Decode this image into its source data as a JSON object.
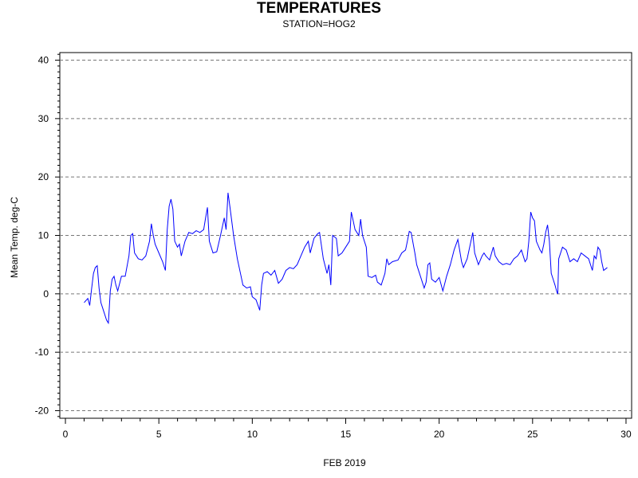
{
  "chart_data": {
    "type": "line",
    "title": "TEMPERATURES",
    "subtitle": "STATION=HOG2",
    "xlabel": "FEB 2019",
    "ylabel": "Mean Temp. deg-C",
    "xlim": [
      -0.3,
      30.3
    ],
    "ylim": [
      -21.3,
      41.3
    ],
    "x_ticks": [
      0,
      5,
      10,
      15,
      20,
      25,
      30
    ],
    "y_ticks": [
      -20,
      -10,
      0,
      10,
      20,
      30,
      40
    ],
    "grid": "horizontal dashed",
    "line_color": "#0000ff",
    "series": [
      {
        "values": [
          [
            1.0,
            -1.5
          ],
          [
            1.2,
            -0.8
          ],
          [
            1.3,
            -2.0
          ],
          [
            1.4,
            0.8
          ],
          [
            1.5,
            3.5
          ],
          [
            1.6,
            4.5
          ],
          [
            1.7,
            4.8
          ],
          [
            1.8,
            1.0
          ],
          [
            1.9,
            -1.5
          ],
          [
            2.0,
            -2.5
          ],
          [
            2.2,
            -4.5
          ],
          [
            2.3,
            -5.0
          ],
          [
            2.4,
            0.5
          ],
          [
            2.5,
            2.5
          ],
          [
            2.6,
            3.0
          ],
          [
            2.7,
            1.5
          ],
          [
            2.8,
            0.5
          ],
          [
            3.0,
            3.0
          ],
          [
            3.2,
            3.0
          ],
          [
            3.4,
            6.5
          ],
          [
            3.5,
            10.0
          ],
          [
            3.6,
            10.3
          ],
          [
            3.7,
            7.0
          ],
          [
            3.9,
            6.0
          ],
          [
            4.1,
            5.8
          ],
          [
            4.3,
            6.5
          ],
          [
            4.5,
            9.0
          ],
          [
            4.6,
            12.0
          ],
          [
            4.7,
            10.0
          ],
          [
            4.8,
            8.5
          ],
          [
            5.0,
            7.0
          ],
          [
            5.2,
            5.5
          ],
          [
            5.35,
            4.0
          ],
          [
            5.45,
            11.0
          ],
          [
            5.55,
            15.0
          ],
          [
            5.65,
            16.2
          ],
          [
            5.75,
            14.5
          ],
          [
            5.85,
            9.0
          ],
          [
            6.0,
            8.0
          ],
          [
            6.1,
            8.5
          ],
          [
            6.2,
            6.5
          ],
          [
            6.4,
            9.0
          ],
          [
            6.6,
            10.5
          ],
          [
            6.8,
            10.3
          ],
          [
            7.0,
            10.8
          ],
          [
            7.2,
            10.5
          ],
          [
            7.4,
            11.0
          ],
          [
            7.5,
            13.0
          ],
          [
            7.6,
            14.8
          ],
          [
            7.7,
            9.0
          ],
          [
            7.9,
            7.0
          ],
          [
            8.1,
            7.2
          ],
          [
            8.3,
            10.0
          ],
          [
            8.5,
            13.0
          ],
          [
            8.6,
            11.0
          ],
          [
            8.7,
            17.3
          ],
          [
            8.8,
            15.0
          ],
          [
            9.0,
            10.0
          ],
          [
            9.2,
            6.0
          ],
          [
            9.4,
            3.0
          ],
          [
            9.5,
            1.5
          ],
          [
            9.7,
            1.0
          ],
          [
            9.9,
            1.2
          ],
          [
            10.0,
            -0.5
          ],
          [
            10.2,
            -1.0
          ],
          [
            10.4,
            -2.8
          ],
          [
            10.5,
            1.5
          ],
          [
            10.6,
            3.5
          ],
          [
            10.8,
            3.8
          ],
          [
            11.0,
            3.2
          ],
          [
            11.2,
            4.0
          ],
          [
            11.4,
            1.8
          ],
          [
            11.6,
            2.5
          ],
          [
            11.8,
            4.0
          ],
          [
            12.0,
            4.5
          ],
          [
            12.2,
            4.3
          ],
          [
            12.4,
            5.0
          ],
          [
            12.6,
            6.5
          ],
          [
            12.8,
            8.0
          ],
          [
            13.0,
            9.0
          ],
          [
            13.1,
            7.0
          ],
          [
            13.3,
            9.5
          ],
          [
            13.5,
            10.3
          ],
          [
            13.6,
            10.5
          ],
          [
            13.8,
            6.0
          ],
          [
            14.0,
            3.5
          ],
          [
            14.1,
            5.0
          ],
          [
            14.2,
            1.5
          ],
          [
            14.3,
            10.0
          ],
          [
            14.5,
            9.5
          ],
          [
            14.6,
            6.5
          ],
          [
            14.8,
            7.0
          ],
          [
            15.0,
            8.0
          ],
          [
            15.2,
            9.0
          ],
          [
            15.3,
            14.0
          ],
          [
            15.4,
            12.5
          ],
          [
            15.5,
            11.0
          ],
          [
            15.7,
            10.0
          ],
          [
            15.8,
            12.8
          ],
          [
            15.9,
            10.0
          ],
          [
            16.1,
            8.0
          ],
          [
            16.2,
            3.0
          ],
          [
            16.4,
            2.8
          ],
          [
            16.6,
            3.2
          ],
          [
            16.7,
            2.0
          ],
          [
            16.9,
            1.5
          ],
          [
            17.1,
            3.5
          ],
          [
            17.2,
            6.0
          ],
          [
            17.3,
            5.0
          ],
          [
            17.5,
            5.5
          ],
          [
            17.8,
            5.8
          ],
          [
            18.0,
            7.0
          ],
          [
            18.2,
            7.5
          ],
          [
            18.3,
            9.0
          ],
          [
            18.4,
            10.7
          ],
          [
            18.5,
            10.5
          ],
          [
            18.7,
            7.0
          ],
          [
            18.8,
            5.0
          ],
          [
            19.0,
            3.0
          ],
          [
            19.2,
            1.0
          ],
          [
            19.3,
            2.0
          ],
          [
            19.4,
            5.0
          ],
          [
            19.5,
            5.3
          ],
          [
            19.6,
            2.5
          ],
          [
            19.8,
            2.0
          ],
          [
            20.0,
            2.8
          ],
          [
            20.2,
            0.5
          ],
          [
            20.4,
            3.0
          ],
          [
            20.6,
            5.0
          ],
          [
            20.8,
            7.5
          ],
          [
            21.0,
            9.3
          ],
          [
            21.2,
            5.5
          ],
          [
            21.3,
            4.5
          ],
          [
            21.5,
            6.0
          ],
          [
            21.7,
            9.0
          ],
          [
            21.8,
            10.5
          ],
          [
            21.9,
            7.0
          ],
          [
            22.1,
            5.0
          ],
          [
            22.3,
            6.5
          ],
          [
            22.4,
            7.0
          ],
          [
            22.5,
            6.5
          ],
          [
            22.7,
            5.8
          ],
          [
            22.9,
            8.0
          ],
          [
            23.0,
            6.5
          ],
          [
            23.2,
            5.5
          ],
          [
            23.4,
            5.0
          ],
          [
            23.6,
            5.2
          ],
          [
            23.8,
            5.0
          ],
          [
            24.0,
            6.0
          ],
          [
            24.2,
            6.5
          ],
          [
            24.4,
            7.5
          ],
          [
            24.6,
            5.5
          ],
          [
            24.7,
            6.0
          ],
          [
            24.8,
            9.0
          ],
          [
            24.9,
            14.0
          ],
          [
            25.0,
            13.0
          ],
          [
            25.1,
            12.5
          ],
          [
            25.2,
            9.0
          ],
          [
            25.4,
            7.5
          ],
          [
            25.5,
            7.0
          ],
          [
            25.6,
            8.5
          ],
          [
            25.7,
            10.5
          ],
          [
            25.8,
            11.8
          ],
          [
            25.9,
            9.0
          ],
          [
            26.0,
            3.5
          ],
          [
            26.1,
            2.5
          ],
          [
            26.2,
            1.5
          ],
          [
            26.3,
            0.3
          ],
          [
            26.35,
            0.0
          ],
          [
            26.4,
            6.0
          ],
          [
            26.6,
            8.0
          ],
          [
            26.8,
            7.5
          ],
          [
            27.0,
            5.5
          ],
          [
            27.2,
            6.0
          ],
          [
            27.4,
            5.5
          ],
          [
            27.6,
            7.0
          ],
          [
            27.8,
            6.5
          ],
          [
            28.0,
            6.0
          ],
          [
            28.2,
            4.0
          ],
          [
            28.3,
            6.5
          ],
          [
            28.4,
            6.0
          ],
          [
            28.5,
            8.0
          ],
          [
            28.6,
            7.5
          ],
          [
            28.7,
            5.5
          ],
          [
            28.8,
            4.0
          ],
          [
            29.0,
            4.5
          ]
        ]
      }
    ]
  }
}
